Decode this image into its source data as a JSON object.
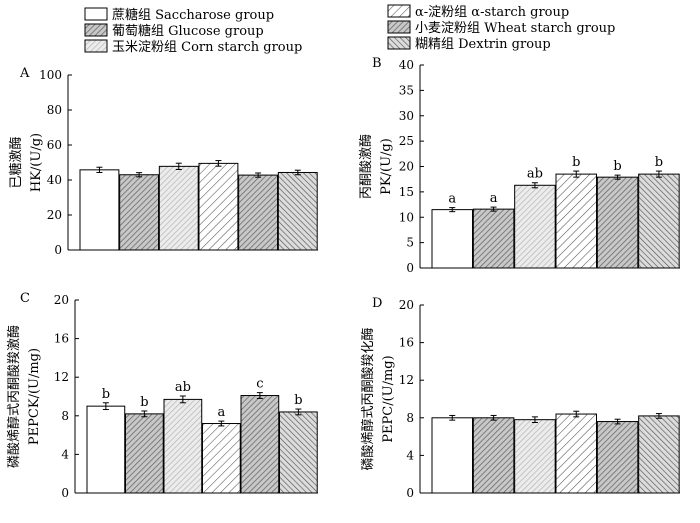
{
  "legend": {
    "items": [
      {
        "label": "蔗糖组 Saccharose group",
        "pattern": "none"
      },
      {
        "label": "葡萄糖组  Glucose group",
        "pattern": "hatch-gray"
      },
      {
        "label": "玉米淀粉组 Corn starch group",
        "pattern": "hatch-light"
      },
      {
        "label": "α-淀粉组 α-starch group",
        "pattern": "hatch-diag"
      },
      {
        "label": "小麦淀粉组 Wheat starch group",
        "pattern": "hatch-gray"
      },
      {
        "label": "糊精组 Dextrin group",
        "pattern": "hatch-back"
      }
    ]
  },
  "colors": {
    "axis": "#000000",
    "hatch": "#555555",
    "background": "#ffffff"
  },
  "chart_data": [
    {
      "type": "bar",
      "panel": "A",
      "ylabel_cn": "已糖激酶",
      "ylabel_en": "HK/(U/g)",
      "ylim": [
        0,
        100
      ],
      "yticks": [
        0,
        20,
        40,
        60,
        80,
        100
      ],
      "values": [
        45.8,
        43.0,
        47.8,
        49.5,
        42.8,
        44.3
      ],
      "errors": [
        1.5,
        1.2,
        1.8,
        1.6,
        1.2,
        1.3
      ],
      "labels": [
        "",
        "",
        "",
        "",
        "",
        ""
      ]
    },
    {
      "type": "bar",
      "panel": "B",
      "ylabel_cn": "丙酮酸激酶",
      "ylabel_en": "PK/(U/g)",
      "ylim": [
        0,
        40
      ],
      "yticks": [
        0,
        5,
        10,
        15,
        20,
        25,
        30,
        35,
        40
      ],
      "values": [
        11.5,
        11.6,
        16.3,
        18.5,
        17.9,
        18.5
      ],
      "errors": [
        0.4,
        0.4,
        0.5,
        0.6,
        0.4,
        0.6
      ],
      "labels": [
        "a",
        "a",
        "ab",
        "b",
        "b",
        "b"
      ]
    },
    {
      "type": "bar",
      "panel": "C",
      "ylabel_cn": "磷酸烯醇式丙酮酸羧激酶",
      "ylabel_en": "PEPCK/(U/mg)",
      "ylim": [
        0,
        20
      ],
      "yticks": [
        0,
        4,
        8,
        12,
        16,
        20
      ],
      "values": [
        9.0,
        8.2,
        9.7,
        7.2,
        10.1,
        8.4
      ],
      "errors": [
        0.35,
        0.3,
        0.35,
        0.25,
        0.3,
        0.3
      ],
      "labels": [
        "b",
        "b",
        "ab",
        "a",
        "c",
        "b"
      ]
    },
    {
      "type": "bar",
      "panel": "D",
      "ylabel_cn": "磷酸烯醇式丙酮酸羧化酶",
      "ylabel_en": "PEPC/(U/mg)",
      "ylim": [
        0,
        20
      ],
      "yticks": [
        0,
        4,
        8,
        12,
        16,
        20
      ],
      "values": [
        8.0,
        8.0,
        7.8,
        8.4,
        7.6,
        8.2
      ],
      "errors": [
        0.25,
        0.25,
        0.3,
        0.3,
        0.25,
        0.25
      ],
      "labels": [
        "",
        "",
        "",
        "",
        "",
        ""
      ]
    }
  ]
}
